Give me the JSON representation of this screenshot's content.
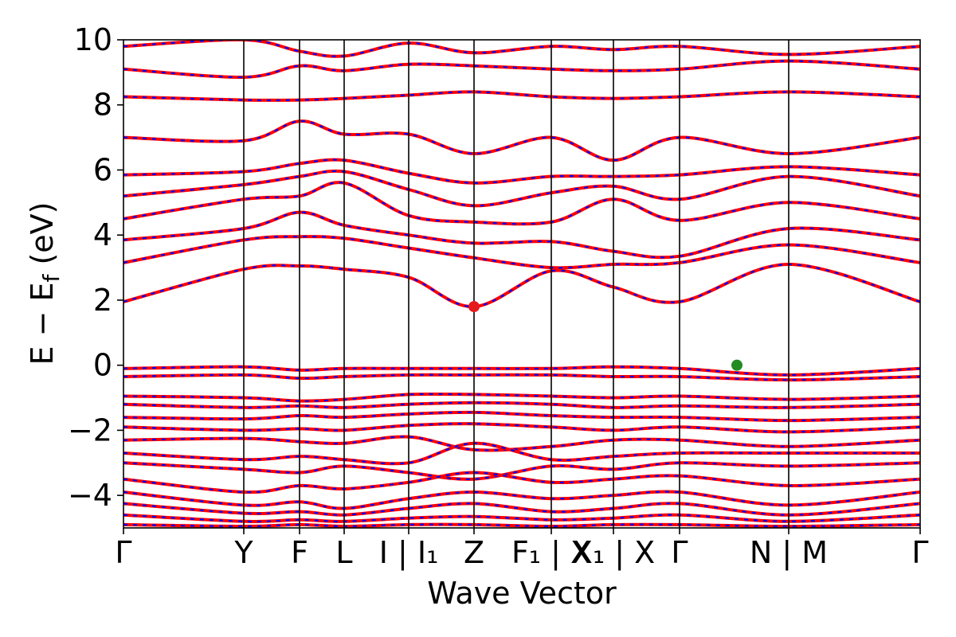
{
  "chart_data": {
    "type": "line",
    "title": "",
    "xlabel": "Wave Vector",
    "ylabel": "E − E",
    "ylabel_sub": "f",
    "ylabel_unit": "(eV)",
    "ylim": [
      -5,
      10
    ],
    "yticks": [
      10,
      8,
      6,
      4,
      2,
      0,
      -2,
      -4
    ],
    "ytick_labels": [
      "10",
      "8",
      "6",
      "4",
      "2",
      "0",
      "−2",
      "−4"
    ],
    "grid": false,
    "legend": "none",
    "high_symmetry_points": [
      {
        "label": "Γ",
        "sub": ""
      },
      {
        "label": "Y",
        "sub": ""
      },
      {
        "label": "F",
        "sub": ""
      },
      {
        "label": "L",
        "sub": ""
      },
      {
        "label": "I | ",
        "sub": ""
      },
      {
        "label": "I",
        "sub": "1"
      },
      {
        "label": "Z",
        "sub": ""
      },
      {
        "label": "F",
        "sub": "1"
      },
      {
        "label": " | ",
        "sub": ""
      },
      {
        "label": "X",
        "sub": ""
      },
      {
        "label": "X",
        "sub": "1"
      },
      {
        "label": " | X",
        "sub": ""
      },
      {
        "label": "Γ",
        "sub": ""
      },
      {
        "label": "N | M",
        "sub": ""
      },
      {
        "label": "Γ",
        "sub": ""
      }
    ],
    "kpath_positions": [
      0.0,
      1.51,
      2.21,
      2.77,
      3.58,
      4.4,
      5.37,
      6.15,
      6.98,
      8.35,
      10.0
    ],
    "kpath_labels": [
      "Γ",
      "Y",
      "F",
      "L",
      "I | I₁",
      "Z",
      "F₁ | X",
      "X₁ | X",
      "Γ",
      "N | M",
      "Γ"
    ],
    "band_edges": {
      "cbm": {
        "k": 4.4,
        "energy": 1.8,
        "color": "#e41a1c"
      },
      "vbm": {
        "k": 7.7,
        "energy": 0.0,
        "color": "#228b22"
      }
    },
    "line_styles": {
      "solid_color": "#ff0000",
      "dashed_color": "#0000ff"
    },
    "series": [
      {
        "k": [
          0,
          1.51,
          2.21,
          2.77,
          3.58,
          4.4,
          5.37,
          6.15,
          6.98,
          8.35,
          10
        ],
        "values": [
          1.95,
          2.95,
          3.05,
          2.95,
          2.7,
          1.8,
          2.9,
          2.4,
          1.95,
          3.1,
          1.95
        ]
      },
      {
        "k": [
          0,
          1.51,
          2.21,
          2.77,
          3.58,
          4.4,
          5.37,
          6.15,
          6.98,
          8.35,
          10
        ],
        "values": [
          3.15,
          3.85,
          3.95,
          3.9,
          3.6,
          3.3,
          3.0,
          3.1,
          3.15,
          3.7,
          3.15
        ]
      },
      {
        "k": [
          0,
          1.51,
          2.21,
          2.77,
          3.58,
          4.4,
          5.37,
          6.15,
          6.98,
          8.35,
          10
        ],
        "values": [
          3.85,
          4.2,
          4.7,
          4.3,
          4.0,
          3.75,
          3.8,
          3.5,
          3.35,
          4.2,
          3.85
        ]
      },
      {
        "k": [
          0,
          1.51,
          2.21,
          2.77,
          3.58,
          4.4,
          5.37,
          6.15,
          6.98,
          8.35,
          10
        ],
        "values": [
          4.5,
          5.1,
          5.2,
          5.6,
          4.6,
          4.4,
          4.4,
          5.1,
          4.45,
          5.0,
          4.5
        ]
      },
      {
        "k": [
          0,
          1.51,
          2.21,
          2.77,
          3.58,
          4.4,
          5.37,
          6.15,
          6.98,
          8.35,
          10
        ],
        "values": [
          5.2,
          5.55,
          5.8,
          5.95,
          5.4,
          4.9,
          5.3,
          5.5,
          5.1,
          5.8,
          5.2
        ]
      },
      {
        "k": [
          0,
          1.51,
          2.21,
          2.77,
          3.58,
          4.4,
          5.37,
          6.15,
          6.98,
          8.35,
          10
        ],
        "values": [
          5.85,
          5.95,
          6.2,
          6.3,
          5.9,
          5.6,
          5.8,
          5.8,
          5.85,
          6.1,
          5.85
        ]
      },
      {
        "k": [
          0,
          1.51,
          2.21,
          2.77,
          3.58,
          4.4,
          5.37,
          6.15,
          6.98,
          8.35,
          10
        ],
        "values": [
          7.0,
          6.9,
          7.5,
          7.1,
          7.1,
          6.5,
          7.0,
          6.3,
          7.0,
          6.5,
          7.0
        ]
      },
      {
        "k": [
          0,
          1.51,
          2.21,
          2.77,
          3.58,
          4.4,
          5.37,
          6.15,
          6.98,
          8.35,
          10
        ],
        "values": [
          8.25,
          8.15,
          8.15,
          8.2,
          8.3,
          8.4,
          8.25,
          8.2,
          8.25,
          8.4,
          8.25
        ]
      },
      {
        "k": [
          0,
          1.51,
          2.21,
          2.77,
          3.58,
          4.4,
          5.37,
          6.15,
          6.98,
          8.35,
          10
        ],
        "values": [
          9.1,
          8.85,
          9.2,
          9.05,
          9.25,
          9.2,
          9.1,
          9.05,
          9.1,
          9.35,
          9.1
        ]
      },
      {
        "k": [
          0,
          1.51,
          2.21,
          2.77,
          3.58,
          4.4,
          5.37,
          6.15,
          6.98,
          8.35,
          10
        ],
        "values": [
          9.8,
          10.0,
          9.65,
          9.5,
          9.9,
          9.6,
          9.8,
          9.7,
          9.8,
          9.55,
          9.8
        ]
      },
      {
        "k": [
          0,
          1.51,
          2.21,
          2.77,
          3.58,
          4.4,
          5.37,
          6.15,
          6.98,
          8.35,
          10
        ],
        "values": [
          -0.1,
          -0.05,
          -0.15,
          -0.1,
          -0.1,
          -0.1,
          -0.1,
          -0.05,
          -0.1,
          -0.3,
          -0.1
        ]
      },
      {
        "k": [
          0,
          1.51,
          2.21,
          2.77,
          3.58,
          4.4,
          5.37,
          6.15,
          6.98,
          8.35,
          10
        ],
        "values": [
          -0.35,
          -0.3,
          -0.4,
          -0.35,
          -0.3,
          -0.3,
          -0.3,
          -0.35,
          -0.35,
          -0.45,
          -0.35
        ]
      },
      {
        "k": [
          0,
          1.51,
          2.21,
          2.77,
          3.58,
          4.4,
          5.37,
          6.15,
          6.98,
          8.35,
          10
        ],
        "values": [
          -0.95,
          -1.0,
          -1.1,
          -1.05,
          -0.9,
          -0.9,
          -0.95,
          -1.0,
          -0.95,
          -1.05,
          -0.95
        ]
      },
      {
        "k": [
          0,
          1.51,
          2.21,
          2.77,
          3.58,
          4.4,
          5.37,
          6.15,
          6.98,
          8.35,
          10
        ],
        "values": [
          -1.2,
          -1.3,
          -1.25,
          -1.3,
          -1.2,
          -1.15,
          -1.2,
          -1.3,
          -1.25,
          -1.3,
          -1.2
        ]
      },
      {
        "k": [
          0,
          1.51,
          2.21,
          2.77,
          3.58,
          4.4,
          5.37,
          6.15,
          6.98,
          8.35,
          10
        ],
        "values": [
          -1.6,
          -1.65,
          -1.55,
          -1.6,
          -1.5,
          -1.45,
          -1.55,
          -1.6,
          -1.6,
          -1.7,
          -1.6
        ]
      },
      {
        "k": [
          0,
          1.51,
          2.21,
          2.77,
          3.58,
          4.4,
          5.37,
          6.15,
          6.98,
          8.35,
          10
        ],
        "values": [
          -1.9,
          -2.0,
          -1.95,
          -2.0,
          -1.85,
          -1.8,
          -1.9,
          -2.0,
          -1.9,
          -2.05,
          -1.9
        ]
      },
      {
        "k": [
          0,
          1.51,
          2.21,
          2.77,
          3.58,
          4.4,
          5.37,
          6.15,
          6.98,
          8.35,
          10
        ],
        "values": [
          -2.3,
          -2.25,
          -2.35,
          -2.4,
          -2.2,
          -2.6,
          -2.5,
          -2.3,
          -2.3,
          -2.5,
          -2.3
        ]
      },
      {
        "k": [
          0,
          1.51,
          2.21,
          2.77,
          3.58,
          4.4,
          5.37,
          6.15,
          6.98,
          8.35,
          10
        ],
        "values": [
          -2.7,
          -2.9,
          -2.8,
          -2.9,
          -3.0,
          -2.4,
          -2.9,
          -2.8,
          -2.7,
          -2.7,
          -2.7
        ]
      },
      {
        "k": [
          0,
          1.51,
          2.21,
          2.77,
          3.58,
          4.4,
          5.37,
          6.15,
          6.98,
          8.35,
          10
        ],
        "values": [
          -3.0,
          -3.2,
          -3.3,
          -3.1,
          -3.3,
          -3.5,
          -3.1,
          -3.2,
          -3.0,
          -3.1,
          -3.0
        ]
      },
      {
        "k": [
          0,
          1.51,
          2.21,
          2.77,
          3.58,
          4.4,
          5.37,
          6.15,
          6.98,
          8.35,
          10
        ],
        "values": [
          -3.5,
          -3.9,
          -3.7,
          -3.8,
          -3.6,
          -3.3,
          -3.6,
          -3.5,
          -3.4,
          -3.7,
          -3.5
        ]
      },
      {
        "k": [
          0,
          1.51,
          2.21,
          2.77,
          3.58,
          4.4,
          5.37,
          6.15,
          6.98,
          8.35,
          10
        ],
        "values": [
          -3.9,
          -4.3,
          -4.2,
          -4.4,
          -4.1,
          -3.9,
          -4.1,
          -4.0,
          -3.9,
          -4.3,
          -3.9
        ]
      },
      {
        "k": [
          0,
          1.51,
          2.21,
          2.77,
          3.58,
          4.4,
          5.37,
          6.15,
          6.98,
          8.35,
          10
        ],
        "values": [
          -4.25,
          -4.55,
          -4.5,
          -4.6,
          -4.4,
          -4.25,
          -4.5,
          -4.4,
          -4.25,
          -4.6,
          -4.25
        ]
      },
      {
        "k": [
          0,
          1.51,
          2.21,
          2.77,
          3.58,
          4.4,
          5.37,
          6.15,
          6.98,
          8.35,
          10
        ],
        "values": [
          -4.6,
          -4.8,
          -4.75,
          -4.8,
          -4.7,
          -4.65,
          -4.75,
          -4.7,
          -4.6,
          -4.8,
          -4.6
        ]
      },
      {
        "k": [
          0,
          1.51,
          2.21,
          2.77,
          3.58,
          4.4,
          5.37,
          6.15,
          6.98,
          8.35,
          10
        ],
        "values": [
          -4.9,
          -4.95,
          -4.9,
          -4.95,
          -4.9,
          -4.9,
          -4.95,
          -4.9,
          -4.9,
          -4.95,
          -4.9
        ]
      }
    ]
  }
}
